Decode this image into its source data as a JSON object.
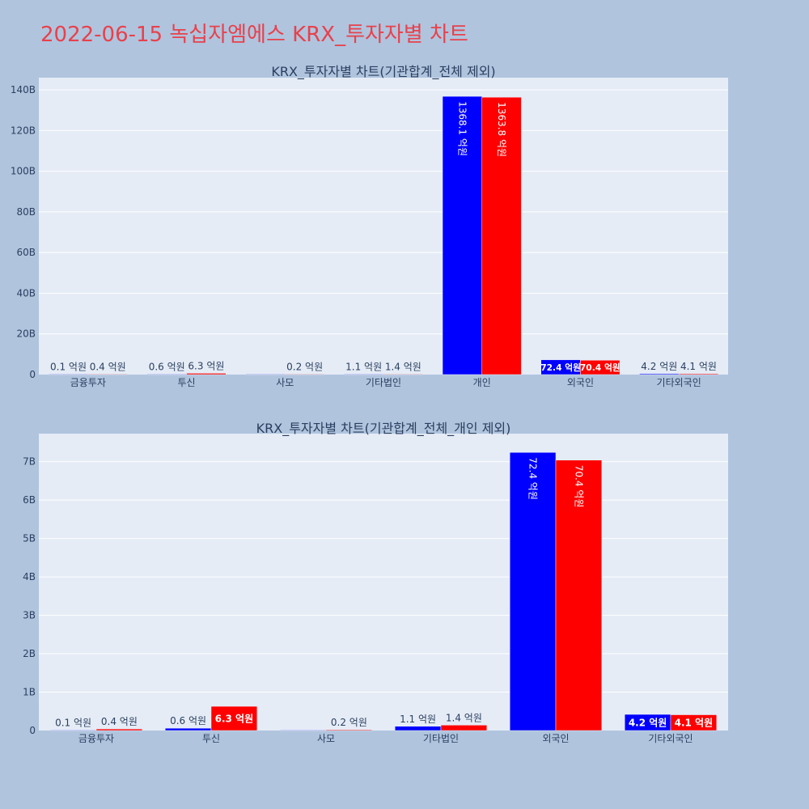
{
  "page_title": "2022-06-15 녹십자엠에스 KRX_투자자별 차트",
  "colors": {
    "buy": "#0000ff",
    "sell": "#ff0000",
    "plot_bg": "#e5ecf6",
    "paper_bg": "#b0c4de",
    "title": "#e8414b"
  },
  "chart_data": [
    {
      "type": "bar",
      "title": "KRX_투자자별 차트(기관합계_전체 제외)",
      "categories": [
        "금융투자",
        "투신",
        "사모",
        "기타법인",
        "개인",
        "외국인",
        "기타외국인"
      ],
      "series": [
        {
          "color": "#0000ff",
          "values": [
            10000000,
            60000000,
            0,
            110000000,
            136810000000,
            7240000000,
            420000000
          ],
          "labels": [
            "0.1 억원",
            "0.6 억원",
            "",
            "1.1 억원",
            "1368.1 억원",
            "72.4 억원",
            "4.2 억원"
          ]
        },
        {
          "color": "#ff0000",
          "values": [
            40000000,
            630000000,
            20000000,
            140000000,
            136380000000,
            7040000000,
            410000000
          ],
          "labels": [
            "0.4 억원",
            "6.3 억원",
            "0.2 억원",
            "1.4 억원",
            "1363.8 억원",
            "70.4 억원",
            "4.1 억원"
          ]
        }
      ],
      "ylim": [
        0,
        146000000000
      ],
      "yticks": [
        0,
        20000000000,
        40000000000,
        60000000000,
        80000000000,
        100000000000,
        120000000000,
        140000000000
      ],
      "ytick_labels": [
        "0",
        "20B",
        "40B",
        "60B",
        "80B",
        "100B",
        "120B",
        "140B"
      ],
      "grid": true,
      "legend": "none"
    },
    {
      "type": "bar",
      "title": "KRX_투자자별 차트(기관합계_전체_개인 제외)",
      "categories": [
        "금융투자",
        "투신",
        "사모",
        "기타법인",
        "외국인",
        "기타외국인"
      ],
      "series": [
        {
          "color": "#0000ff",
          "values": [
            10000000,
            60000000,
            0,
            110000000,
            7240000000,
            420000000
          ],
          "labels": [
            "0.1 억원",
            "0.6 억원",
            "",
            "1.1 억원",
            "72.4 억원",
            "4.2 억원"
          ]
        },
        {
          "color": "#ff0000",
          "values": [
            40000000,
            630000000,
            20000000,
            140000000,
            7040000000,
            410000000
          ],
          "labels": [
            "0.4 억원",
            "6.3 억원",
            "0.2 억원",
            "1.4 억원",
            "70.4 억원",
            "4.1 억원"
          ]
        }
      ],
      "ylim": [
        0,
        7730000000
      ],
      "yticks": [
        0,
        1000000000,
        2000000000,
        3000000000,
        4000000000,
        5000000000,
        6000000000,
        7000000000
      ],
      "ytick_labels": [
        "0",
        "1B",
        "2B",
        "3B",
        "4B",
        "5B",
        "6B",
        "7B"
      ],
      "grid": true,
      "legend": "none"
    }
  ]
}
